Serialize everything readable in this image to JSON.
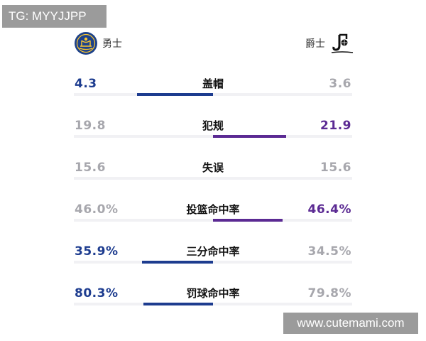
{
  "watermarks": {
    "top_left": "TG: MYYJJPP",
    "bottom_right": "www.cutemami.com"
  },
  "teams": {
    "home": {
      "name": "勇士",
      "logo": "warriors-logo",
      "color": "#1d3c8f"
    },
    "away": {
      "name": "爵士",
      "logo": "jazz-logo",
      "color": "#5b2a93"
    }
  },
  "colors": {
    "muted_value": "#a7a7ad",
    "track": "#f1f1f4"
  },
  "stats": [
    {
      "label": "盖帽",
      "home": "4.3",
      "away": "3.6",
      "leader": "home",
      "home_num": 4.3,
      "away_num": 3.6
    },
    {
      "label": "犯规",
      "home": "19.8",
      "away": "21.9",
      "leader": "away",
      "home_num": 19.8,
      "away_num": 21.9
    },
    {
      "label": "失误",
      "home": "15.6",
      "away": "15.6",
      "leader": "none",
      "home_num": 15.6,
      "away_num": 15.6
    },
    {
      "label": "投篮命中率",
      "home": "46.0%",
      "away": "46.4%",
      "leader": "away",
      "home_num": 46.0,
      "away_num": 46.4
    },
    {
      "label": "三分命中率",
      "home": "35.9%",
      "away": "34.5%",
      "leader": "home",
      "home_num": 35.9,
      "away_num": 34.5
    },
    {
      "label": "罚球命中率",
      "home": "80.3%",
      "away": "79.8%",
      "leader": "home",
      "home_num": 80.3,
      "away_num": 79.8
    }
  ]
}
